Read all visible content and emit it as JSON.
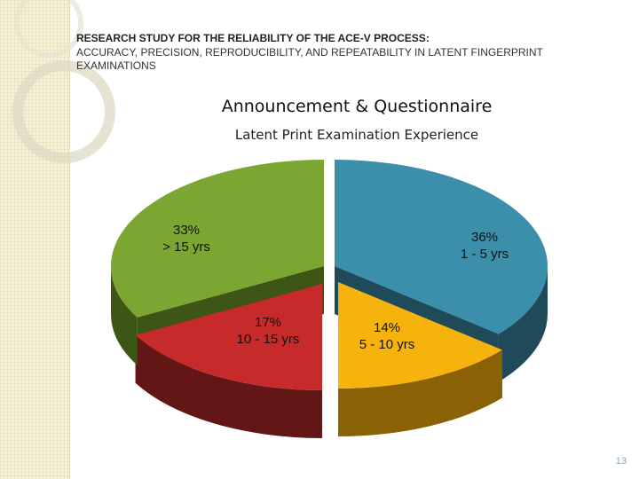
{
  "header": {
    "title": "RESEARCH STUDY FOR THE RELIABILITY OF THE ACE-V PROCESS:",
    "subtitle": "ACCURACY, PRECISION, REPRODUCIBILITY, AND REPEATABILITY IN LATENT FINGERPRINT EXAMINATIONS"
  },
  "section_heading": "Announcement & Questionnaire",
  "chart_data": {
    "type": "pie",
    "title": "Latent Print Examination Experience",
    "style": "3d",
    "slices": [
      {
        "label": "1 - 5 yrs",
        "value": 36,
        "value_text": "36%",
        "color": "#3b8fab",
        "side_color": "#1f4a5a"
      },
      {
        "label": "5 - 10 yrs",
        "value": 14,
        "value_text": "14%",
        "color": "#f7b30d",
        "side_color": "#8a6205"
      },
      {
        "label": "10 - 15 yrs",
        "value": 17,
        "value_text": "17%",
        "color": "#c62a2a",
        "side_color": "#621616"
      },
      {
        "label": "> 15 yrs",
        "value": 33,
        "value_text": "33%",
        "color": "#7ba631",
        "side_color": "#3e5615"
      }
    ]
  },
  "page_number": "13",
  "colors": {
    "strip": "#f6f1dc",
    "circle": "#d9d5bf"
  }
}
